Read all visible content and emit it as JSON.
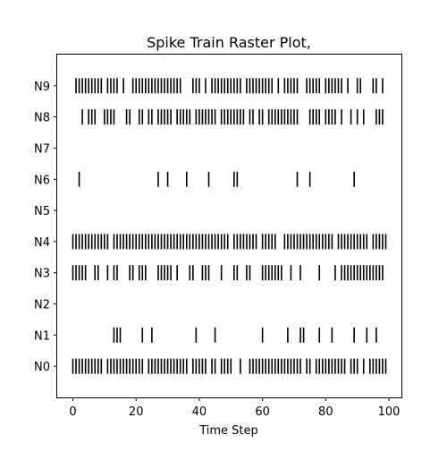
{
  "chart_data": {
    "type": "raster",
    "title": "Spike Train Raster Plot,",
    "xlabel": "Time Step",
    "ylabel": "",
    "xlim": [
      -4.95,
      103.95
    ],
    "xticks": [
      0,
      20,
      40,
      60,
      80,
      100
    ],
    "ylim": [
      -1,
      10
    ],
    "grid": false,
    "neurons": [
      "N0",
      "N1",
      "N2",
      "N3",
      "N4",
      "N5",
      "N6",
      "N7",
      "N8",
      "N9"
    ],
    "series": [
      {
        "name": "N0",
        "spikes": [
          0,
          1,
          2,
          3,
          4,
          5,
          6,
          7,
          8,
          9,
          11,
          12,
          13,
          14,
          15,
          16,
          17,
          18,
          19,
          20,
          21,
          22,
          24,
          25,
          26,
          27,
          28,
          29,
          30,
          31,
          32,
          33,
          34,
          35,
          36,
          38,
          39,
          40,
          41,
          42,
          44,
          45,
          47,
          48,
          49,
          50,
          53,
          56,
          57,
          58,
          59,
          60,
          61,
          62,
          63,
          64,
          65,
          66,
          67,
          68,
          69,
          70,
          71,
          72,
          74,
          75,
          77,
          78,
          79,
          80,
          81,
          82,
          83,
          84,
          85,
          86,
          88,
          89,
          90,
          92,
          94,
          95,
          96,
          97,
          98,
          99
        ]
      },
      {
        "name": "N1",
        "spikes": [
          13,
          14,
          15,
          22,
          25,
          39,
          45,
          60,
          68,
          72,
          73,
          78,
          82,
          89,
          93,
          96
        ]
      },
      {
        "name": "N2",
        "spikes": []
      },
      {
        "name": "N3",
        "spikes": [
          0,
          1,
          2,
          3,
          4,
          7,
          8,
          11,
          13,
          14,
          18,
          19,
          21,
          22,
          23,
          27,
          28,
          29,
          30,
          31,
          33,
          37,
          38,
          41,
          42,
          43,
          47,
          51,
          52,
          55,
          56,
          60,
          61,
          62,
          63,
          64,
          65,
          66,
          69,
          72,
          78,
          83,
          85,
          86,
          87,
          88,
          89,
          90,
          91,
          92,
          93,
          94,
          95,
          96,
          97,
          98
        ]
      },
      {
        "name": "N4",
        "spikes": [
          0,
          1,
          2,
          3,
          4,
          5,
          6,
          7,
          8,
          9,
          10,
          11,
          13,
          14,
          15,
          16,
          17,
          18,
          19,
          20,
          21,
          22,
          23,
          24,
          25,
          26,
          27,
          28,
          29,
          30,
          31,
          32,
          33,
          34,
          35,
          36,
          37,
          38,
          39,
          40,
          41,
          42,
          43,
          44,
          45,
          46,
          47,
          48,
          49,
          51,
          52,
          53,
          54,
          55,
          56,
          57,
          58,
          60,
          61,
          62,
          63,
          64,
          67,
          68,
          69,
          70,
          71,
          72,
          73,
          74,
          75,
          76,
          77,
          78,
          79,
          80,
          81,
          82,
          84,
          85,
          86,
          87,
          88,
          89,
          90,
          91,
          92,
          93,
          95,
          96,
          97,
          98,
          99
        ]
      },
      {
        "name": "N5",
        "spikes": []
      },
      {
        "name": "N6",
        "spikes": [
          2,
          27,
          30,
          36,
          43,
          51,
          52,
          71,
          75,
          89
        ]
      },
      {
        "name": "N7",
        "spikes": []
      },
      {
        "name": "N8",
        "spikes": [
          3,
          5,
          6,
          7,
          10,
          11,
          12,
          13,
          17,
          18,
          21,
          22,
          24,
          25,
          27,
          28,
          29,
          30,
          31,
          33,
          34,
          35,
          36,
          37,
          39,
          40,
          41,
          42,
          43,
          44,
          45,
          47,
          48,
          49,
          50,
          51,
          52,
          53,
          54,
          56,
          57,
          59,
          60,
          62,
          63,
          64,
          65,
          66,
          67,
          68,
          69,
          70,
          71,
          75,
          76,
          77,
          78,
          80,
          81,
          82,
          83,
          85,
          88,
          90,
          92,
          96,
          97,
          98
        ]
      },
      {
        "name": "N9",
        "spikes": [
          1,
          2,
          3,
          4,
          5,
          6,
          7,
          8,
          9,
          11,
          12,
          13,
          14,
          16,
          19,
          20,
          21,
          22,
          23,
          24,
          25,
          26,
          27,
          28,
          29,
          30,
          31,
          32,
          33,
          34,
          38,
          39,
          40,
          42,
          44,
          45,
          46,
          47,
          48,
          49,
          50,
          51,
          52,
          53,
          55,
          56,
          57,
          58,
          59,
          60,
          61,
          62,
          63,
          65,
          67,
          68,
          69,
          70,
          71,
          74,
          75,
          76,
          77,
          78,
          80,
          81,
          82,
          83,
          84,
          85,
          87,
          90,
          91,
          95,
          96,
          98
        ]
      }
    ]
  }
}
